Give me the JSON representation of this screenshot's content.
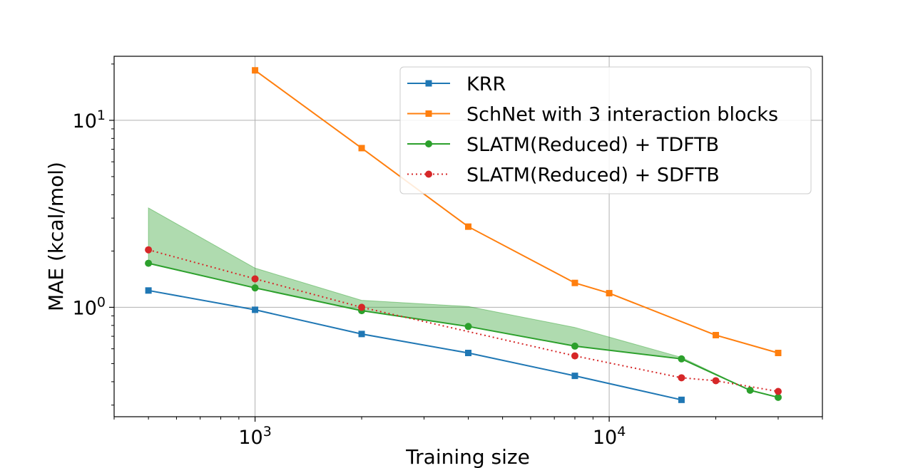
{
  "chart_data": {
    "type": "line",
    "xlabel": "Training size",
    "ylabel": "MAE (kcal/mol)",
    "xscale": "log",
    "yscale": "log",
    "xlim": [
      400,
      40000
    ],
    "ylim": [
      0.26,
      22
    ],
    "grid": true,
    "legend_position": "top-right",
    "x_ticks": [
      {
        "value": 1000,
        "base": "10",
        "exp": "3"
      },
      {
        "value": 10000,
        "base": "10",
        "exp": "4"
      }
    ],
    "y_ticks": [
      {
        "value": 1,
        "base": "10",
        "exp": "0"
      },
      {
        "value": 10,
        "base": "10",
        "exp": "1"
      }
    ],
    "series": [
      {
        "name": "KRR",
        "color": "#1f77b4",
        "marker": "square",
        "linestyle": "solid",
        "x": [
          500,
          1000,
          2000,
          4000,
          8000,
          16000
        ],
        "y": [
          1.23,
          0.97,
          0.72,
          0.57,
          0.43,
          0.32
        ]
      },
      {
        "name": "SchNet with 3 interaction blocks",
        "color": "#ff7f0e",
        "marker": "square",
        "linestyle": "solid",
        "x": [
          1000,
          2000,
          4000,
          8000,
          10000,
          20000,
          30000
        ],
        "y": [
          18.5,
          7.1,
          2.7,
          1.35,
          1.19,
          0.71,
          0.57
        ]
      },
      {
        "name": "SLATM(Reduced) + TDFTB",
        "color": "#2ca02c",
        "marker": "circle",
        "linestyle": "solid",
        "x": [
          500,
          1000,
          2000,
          4000,
          8000,
          16000,
          25000,
          30000
        ],
        "y": [
          1.72,
          1.27,
          0.96,
          0.79,
          0.62,
          0.53,
          0.36,
          0.33
        ],
        "band_upper": [
          3.4,
          1.62,
          1.09,
          1.01,
          0.78,
          0.54,
          0.36,
          0.33
        ]
      },
      {
        "name": "SLATM(Reduced) + SDFTB",
        "color": "#d62728",
        "marker": "circle",
        "linestyle": "dotted",
        "x": [
          500,
          1000,
          2000,
          8000,
          16000,
          20000,
          30000
        ],
        "y": [
          2.03,
          1.42,
          1.0,
          0.55,
          0.42,
          0.405,
          0.355
        ]
      }
    ]
  }
}
